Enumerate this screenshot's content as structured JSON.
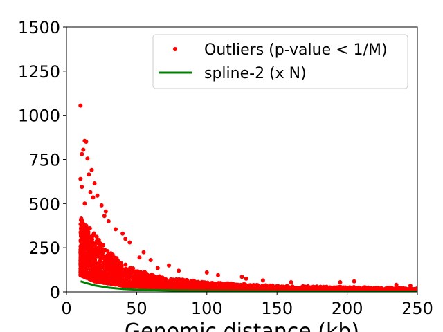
{
  "chart_data": {
    "type": "scatter",
    "xlabel": "Genomic distance (kb)",
    "ylabel": "",
    "title": "",
    "xlim": [
      0,
      250
    ],
    "ylim": [
      0,
      1500
    ],
    "x_ticks": [
      0,
      50,
      100,
      150,
      200,
      250
    ],
    "y_ticks": [
      0,
      250,
      500,
      750,
      1000,
      1250,
      1500
    ],
    "grid": false,
    "legend_position": "top-right",
    "series": [
      {
        "name": "Outliers (p-value < 1/M)",
        "kind": "scatter",
        "color": "#ff0000",
        "highlight_points": [
          {
            "x": 10,
            "y": 1055
          },
          {
            "x": 13,
            "y": 855
          },
          {
            "x": 14,
            "y": 850
          },
          {
            "x": 12,
            "y": 805
          },
          {
            "x": 11,
            "y": 780
          },
          {
            "x": 18,
            "y": 690
          },
          {
            "x": 16,
            "y": 665
          },
          {
            "x": 15,
            "y": 755
          },
          {
            "x": 10,
            "y": 640
          },
          {
            "x": 11,
            "y": 595
          },
          {
            "x": 20,
            "y": 615
          },
          {
            "x": 17,
            "y": 565
          },
          {
            "x": 22,
            "y": 545
          },
          {
            "x": 19,
            "y": 535
          },
          {
            "x": 25,
            "y": 490
          },
          {
            "x": 13,
            "y": 500
          },
          {
            "x": 28,
            "y": 455
          },
          {
            "x": 27,
            "y": 430
          },
          {
            "x": 30,
            "y": 400
          },
          {
            "x": 35,
            "y": 355
          },
          {
            "x": 40,
            "y": 330
          },
          {
            "x": 42,
            "y": 300
          },
          {
            "x": 45,
            "y": 280
          },
          {
            "x": 55,
            "y": 225
          },
          {
            "x": 52,
            "y": 195
          },
          {
            "x": 60,
            "y": 180
          },
          {
            "x": 65,
            "y": 135
          },
          {
            "x": 73,
            "y": 150
          },
          {
            "x": 80,
            "y": 120
          },
          {
            "x": 100,
            "y": 110
          },
          {
            "x": 108,
            "y": 95
          },
          {
            "x": 125,
            "y": 85
          },
          {
            "x": 128,
            "y": 75
          },
          {
            "x": 140,
            "y": 65
          },
          {
            "x": 160,
            "y": 55
          },
          {
            "x": 195,
            "y": 55
          },
          {
            "x": 205,
            "y": 60
          },
          {
            "x": 235,
            "y": 40
          },
          {
            "x": 245,
            "y": 35
          }
        ],
        "cloud": {
          "x_range": [
            10,
            250
          ],
          "y_upper_at_x": [
            [
              10,
              420
            ],
            [
              15,
              380
            ],
            [
              20,
              330
            ],
            [
              30,
              230
            ],
            [
              40,
              170
            ],
            [
              50,
              125
            ],
            [
              70,
              80
            ],
            [
              100,
              55
            ],
            [
              150,
              35
            ],
            [
              200,
              28
            ],
            [
              250,
              22
            ]
          ],
          "y_lower_at_x": [
            [
              10,
              95
            ],
            [
              20,
              60
            ],
            [
              40,
              35
            ],
            [
              70,
              20
            ],
            [
              100,
              12
            ],
            [
              150,
              8
            ],
            [
              250,
              5
            ]
          ],
          "point_count": 2600
        }
      },
      {
        "name": "spline-2 (x N)",
        "kind": "line",
        "color": "#008000",
        "x": [
          10,
          15,
          20,
          25,
          30,
          40,
          50,
          60,
          80,
          100,
          125,
          150,
          175,
          200,
          225,
          250
        ],
        "y": [
          60,
          48,
          37,
          30,
          24,
          17,
          13,
          10,
          7,
          5,
          4,
          3,
          2.5,
          2,
          1.7,
          1.5
        ]
      }
    ]
  }
}
